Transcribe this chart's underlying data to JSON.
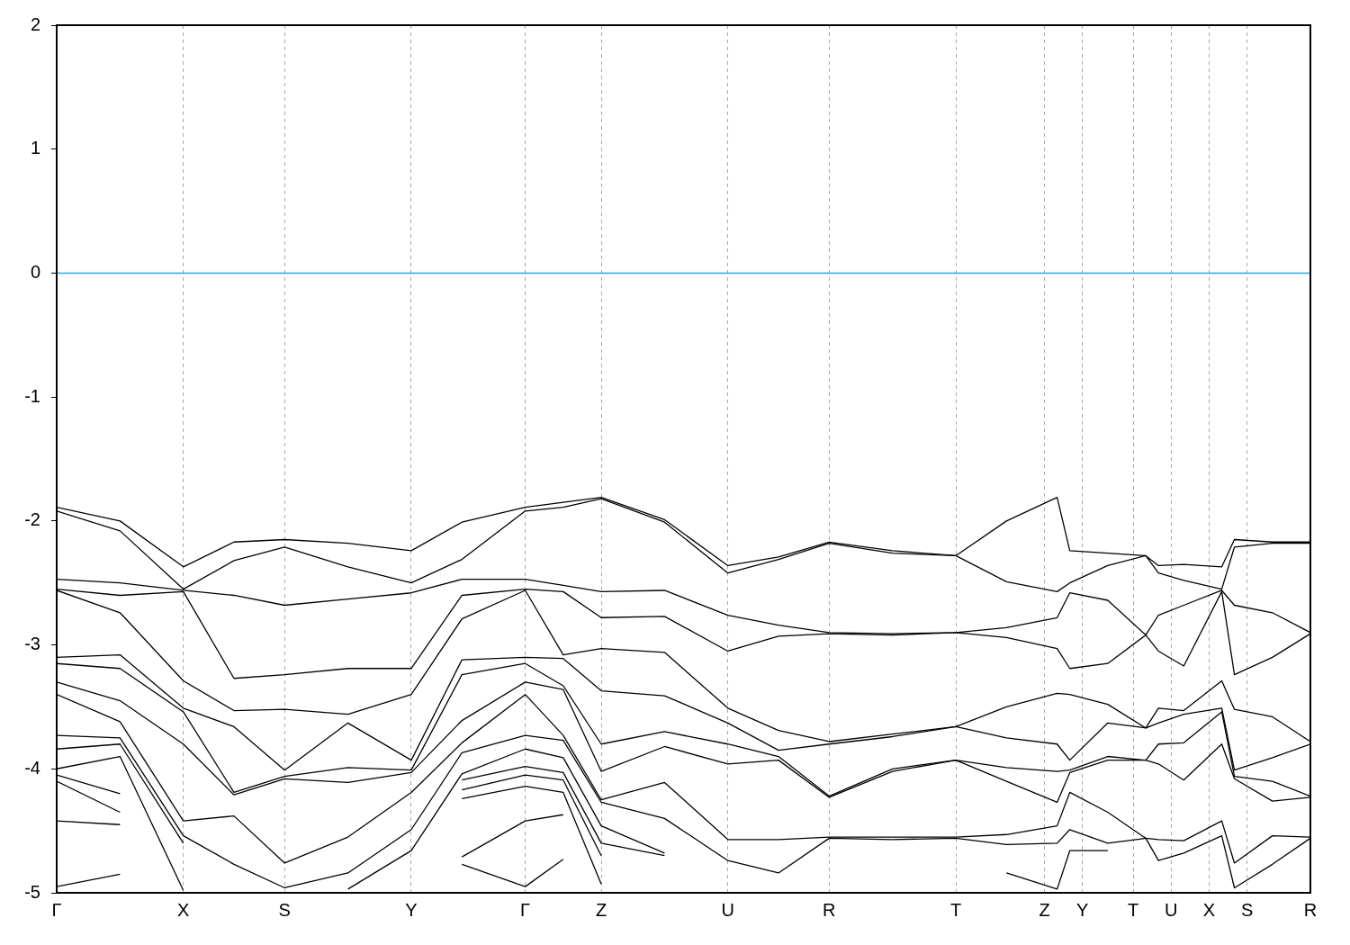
{
  "chart_data": {
    "type": "line",
    "color": "#000000",
    "marker": "none",
    "line_style": "solid",
    "legend": false,
    "grid": "x",
    "categories": [
      "Γ",
      null,
      null,
      null,
      null,
      null,
      null,
      null,
      null,
      null,
      "X",
      null,
      null,
      null,
      null,
      null,
      null,
      null,
      "S",
      null,
      null,
      null,
      null,
      null,
      null,
      null,
      null,
      null,
      "Y",
      null,
      null,
      null,
      null,
      null,
      null,
      null,
      null,
      "Γ",
      null,
      null,
      null,
      null,
      null,
      "Z",
      null,
      null,
      null,
      null,
      null,
      null,
      null,
      null,
      null,
      "U",
      null,
      null,
      null,
      null,
      null,
      null,
      null,
      "R",
      null,
      null,
      null,
      null,
      null,
      null,
      null,
      null,
      null,
      "T",
      null,
      null,
      null,
      null,
      null,
      null,
      "Z",
      null,
      null,
      "Y",
      null,
      null,
      null,
      "T",
      null,
      null,
      "U",
      null,
      null,
      "X",
      null,
      null,
      "S",
      null,
      null,
      null,
      null,
      "R"
    ],
    "series": [
      {
        "values": [
          -1.89,
          null,
          null,
          null,
          null,
          -2.0,
          null,
          null,
          null,
          null,
          -2.37,
          null,
          null,
          null,
          -2.17,
          null,
          null,
          null,
          -2.15,
          null,
          null,
          null,
          null,
          -2.18,
          null,
          null,
          null,
          null,
          -2.24,
          null,
          null,
          null,
          -2.01,
          null,
          null,
          null,
          null,
          -1.89,
          null,
          null,
          -1.85,
          null,
          null,
          -1.81,
          null,
          null,
          null,
          null,
          -1.99,
          null,
          null,
          null,
          null,
          -2.36,
          null,
          null,
          null,
          -2.29,
          null,
          null,
          null,
          -2.17,
          null,
          null,
          null,
          null,
          -2.24,
          null,
          null,
          null,
          null,
          -2.28,
          null,
          null,
          null,
          -2.0,
          null,
          null,
          null,
          -1.81,
          -2.24,
          null,
          null,
          -2.26,
          null,
          null,
          -2.28,
          -2.36,
          null,
          -2.35,
          null,
          null,
          -2.37,
          -2.15,
          null,
          null,
          -2.17,
          null,
          null,
          -2.17
        ]
      },
      {
        "values": [
          -1.92,
          null,
          null,
          null,
          null,
          -2.08,
          null,
          null,
          null,
          null,
          -2.55,
          null,
          null,
          null,
          -2.32,
          null,
          null,
          null,
          -2.21,
          null,
          null,
          null,
          null,
          -2.37,
          null,
          null,
          null,
          null,
          -2.5,
          null,
          null,
          null,
          -2.31,
          null,
          null,
          null,
          null,
          -1.92,
          null,
          null,
          -1.89,
          null,
          null,
          -1.82,
          null,
          null,
          null,
          null,
          -2.01,
          null,
          null,
          null,
          null,
          -2.42,
          null,
          null,
          null,
          -2.31,
          null,
          null,
          null,
          -2.18,
          null,
          null,
          null,
          null,
          -2.26,
          null,
          null,
          null,
          null,
          -2.28,
          null,
          null,
          null,
          -2.49,
          null,
          null,
          null,
          -2.57,
          -2.5,
          null,
          null,
          -2.36,
          null,
          null,
          -2.28,
          -2.42,
          null,
          -2.48,
          null,
          null,
          -2.55,
          -2.21,
          null,
          null,
          -2.18,
          null,
          null,
          -2.18
        ]
      },
      {
        "values": [
          -2.47,
          null,
          null,
          null,
          null,
          -2.5,
          null,
          null,
          null,
          null,
          -2.56,
          null,
          null,
          null,
          -2.6,
          null,
          null,
          null,
          -2.68,
          null,
          null,
          null,
          null,
          -2.63,
          null,
          null,
          null,
          null,
          -2.58,
          null,
          null,
          null,
          -2.47,
          null,
          null,
          null,
          null,
          -2.47,
          null,
          null,
          -2.52,
          null,
          null,
          -2.57,
          null,
          null,
          null,
          null,
          -2.56,
          null,
          null,
          null,
          null,
          -2.76,
          null,
          null,
          null,
          -2.84,
          null,
          null,
          null,
          -2.9,
          null,
          null,
          null,
          null,
          -2.91,
          null,
          null,
          null,
          null,
          -2.9,
          null,
          null,
          null,
          -2.86,
          null,
          null,
          null,
          -2.78,
          -2.58,
          null,
          null,
          -2.64,
          null,
          null,
          -2.92,
          -2.76,
          null,
          -2.68,
          null,
          null,
          -2.56,
          -2.68,
          null,
          null,
          -2.74,
          null,
          null,
          -2.9
        ]
      },
      {
        "values": [
          -2.55,
          null,
          null,
          null,
          null,
          -2.6,
          null,
          null,
          null,
          null,
          -2.57,
          null,
          null,
          null,
          -3.27,
          null,
          null,
          null,
          -3.24,
          null,
          null,
          null,
          null,
          -3.19,
          null,
          null,
          null,
          null,
          -3.19,
          null,
          null,
          null,
          -2.6,
          null,
          null,
          null,
          null,
          -2.55,
          null,
          null,
          -2.57,
          null,
          null,
          -2.78,
          null,
          null,
          null,
          null,
          -2.77,
          null,
          null,
          null,
          null,
          -3.05,
          null,
          null,
          null,
          -2.93,
          null,
          null,
          null,
          -2.91,
          null,
          null,
          null,
          null,
          -2.92,
          null,
          null,
          null,
          null,
          -2.9,
          null,
          null,
          null,
          -2.94,
          null,
          null,
          null,
          -3.03,
          -3.19,
          null,
          null,
          -3.15,
          null,
          null,
          -2.92,
          -3.05,
          null,
          -3.17,
          null,
          null,
          -2.57,
          -3.24,
          null,
          null,
          -3.1,
          null,
          null,
          -2.91
        ]
      },
      {
        "values": [
          -2.56,
          null,
          null,
          null,
          null,
          -2.74,
          null,
          null,
          null,
          null,
          -3.29,
          null,
          null,
          null,
          -3.53,
          null,
          null,
          null,
          -3.52,
          null,
          null,
          null,
          null,
          -3.56,
          null,
          null,
          null,
          null,
          -3.4,
          null,
          null,
          null,
          -2.79,
          null,
          null,
          null,
          null,
          -2.56,
          null,
          null,
          -3.08,
          null,
          null,
          -3.03,
          null,
          null,
          null,
          null,
          -3.06,
          null,
          null,
          null,
          null,
          -3.51,
          null,
          null,
          null,
          -3.69,
          null,
          null,
          null,
          -3.78,
          null,
          null,
          null,
          null,
          -3.72,
          null,
          null,
          null,
          null,
          -3.66,
          null,
          null,
          null,
          -3.5,
          null,
          null,
          null,
          -3.39,
          -3.4,
          null,
          null,
          -3.48,
          null,
          null,
          -3.67,
          -3.51,
          null,
          -3.53,
          null,
          null,
          -3.29,
          -3.52,
          null,
          null,
          -3.58,
          null,
          null,
          -3.78
        ]
      },
      {
        "values": [
          -3.1,
          null,
          null,
          null,
          null,
          -3.08,
          null,
          null,
          null,
          null,
          -3.51,
          null,
          null,
          null,
          -3.66,
          null,
          null,
          null,
          -4.01,
          null,
          null,
          null,
          null,
          -3.63,
          null,
          null,
          null,
          null,
          -3.93,
          null,
          null,
          null,
          -3.12,
          null,
          null,
          null,
          null,
          -3.1,
          null,
          null,
          -3.11,
          null,
          null,
          -3.37,
          null,
          null,
          null,
          null,
          -3.41,
          null,
          null,
          null,
          null,
          -3.63,
          null,
          null,
          null,
          -3.85,
          null,
          null,
          null,
          -3.8,
          null,
          null,
          null,
          null,
          -3.74,
          null,
          null,
          null,
          null,
          -3.66,
          null,
          null,
          null,
          -3.75,
          null,
          null,
          null,
          -3.8,
          -3.93,
          null,
          null,
          -3.63,
          null,
          null,
          -3.67,
          -3.63,
          null,
          -3.56,
          null,
          null,
          -3.51,
          -4.01,
          null,
          null,
          -3.91,
          null,
          null,
          -3.8
        ]
      },
      {
        "values": [
          -3.15,
          null,
          null,
          null,
          null,
          -3.19,
          null,
          null,
          null,
          null,
          -3.54,
          null,
          null,
          null,
          -4.19,
          null,
          null,
          null,
          -4.06,
          null,
          null,
          null,
          null,
          -3.99,
          null,
          null,
          null,
          null,
          -4.01,
          null,
          null,
          null,
          -3.24,
          null,
          null,
          null,
          null,
          -3.15,
          null,
          null,
          -3.33,
          null,
          null,
          -3.8,
          null,
          null,
          null,
          null,
          -3.7,
          null,
          null,
          null,
          null,
          -3.8,
          null,
          null,
          null,
          -3.9,
          null,
          null,
          null,
          -4.22,
          null,
          null,
          null,
          null,
          -4.0,
          null,
          null,
          null,
          null,
          -3.93,
          null,
          null,
          null,
          -3.99,
          null,
          null,
          null,
          -4.02,
          -4.01,
          null,
          null,
          -3.9,
          null,
          null,
          -3.93,
          -3.8,
          null,
          -3.79,
          null,
          null,
          -3.54,
          -4.06,
          null,
          null,
          -4.1,
          null,
          null,
          -4.22
        ]
      },
      {
        "values": [
          -3.3,
          null,
          null,
          null,
          null,
          -3.45,
          null,
          null,
          null,
          null,
          -3.8,
          null,
          null,
          null,
          -4.21,
          null,
          null,
          null,
          -4.08,
          null,
          null,
          null,
          null,
          -4.11,
          null,
          null,
          null,
          null,
          -4.03,
          null,
          null,
          null,
          -3.61,
          null,
          null,
          null,
          null,
          -3.3,
          null,
          null,
          -3.36,
          null,
          null,
          -4.02,
          null,
          null,
          null,
          null,
          -3.82,
          null,
          null,
          null,
          null,
          -3.96,
          null,
          null,
          null,
          -3.93,
          null,
          null,
          null,
          -4.23,
          null,
          null,
          null,
          null,
          -4.02,
          null,
          null,
          null,
          null,
          -3.93,
          null,
          null,
          null,
          -4.1,
          null,
          null,
          null,
          -4.27,
          -4.03,
          null,
          null,
          -3.93,
          null,
          null,
          -3.93,
          -3.96,
          null,
          -4.09,
          null,
          null,
          -3.8,
          -4.08,
          null,
          null,
          -4.26,
          null,
          null,
          -4.23
        ]
      },
      {
        "values": [
          -3.4,
          null,
          null,
          null,
          null,
          -3.62,
          null,
          null,
          null,
          null,
          -4.42,
          null,
          null,
          null,
          -4.38,
          null,
          null,
          null,
          -4.76,
          null,
          null,
          null,
          null,
          -4.55,
          null,
          null,
          null,
          null,
          -4.19,
          null,
          null,
          null,
          -3.79,
          null,
          null,
          null,
          null,
          -3.4,
          null,
          null,
          -3.73,
          null,
          null,
          -4.25,
          null,
          null,
          null,
          null,
          -4.11,
          null,
          null,
          null,
          null,
          -4.57,
          null,
          null,
          null,
          -4.57,
          null,
          null,
          null,
          -4.55,
          null,
          null,
          null,
          null,
          -4.55,
          null,
          null,
          null,
          null,
          -4.55,
          null,
          null,
          null,
          -4.53,
          null,
          null,
          null,
          -4.46,
          -4.19,
          null,
          null,
          -4.35,
          null,
          null,
          -4.56,
          -4.57,
          null,
          -4.58,
          null,
          null,
          -4.42,
          -4.76,
          null,
          null,
          -4.54,
          null,
          null,
          -4.55
        ]
      },
      {
        "values": [
          -3.73,
          null,
          null,
          null,
          null,
          -3.75,
          null,
          null,
          null,
          null,
          -4.54,
          null,
          null,
          null,
          -4.77,
          null,
          null,
          null,
          -4.96,
          null,
          null,
          null,
          null,
          -4.84,
          null,
          null,
          null,
          null,
          -4.49,
          null,
          null,
          null,
          -3.87,
          null,
          null,
          null,
          null,
          -3.73,
          null,
          null,
          -3.77,
          null,
          null,
          -4.27,
          null,
          null,
          null,
          null,
          -4.4,
          null,
          null,
          null,
          null,
          -4.74,
          null,
          null,
          null,
          -4.84,
          null,
          null,
          null,
          -4.56,
          null,
          null,
          null,
          null,
          -4.57,
          null,
          null,
          null,
          null,
          -4.56,
          null,
          null,
          null,
          -4.61,
          null,
          null,
          null,
          -4.6,
          -4.49,
          null,
          null,
          -4.6,
          null,
          null,
          -4.56,
          -4.74,
          null,
          -4.68,
          null,
          null,
          -4.54,
          -4.96,
          null,
          null,
          -4.77,
          null,
          null,
          -4.56
        ]
      },
      {
        "values": [
          -3.84,
          null,
          null,
          null,
          null,
          -3.8,
          null,
          null,
          null,
          null,
          -4.6,
          null,
          null,
          null,
          null,
          null,
          null,
          null,
          null,
          null,
          null,
          null,
          null,
          -4.97,
          null,
          null,
          null,
          null,
          -4.66,
          null,
          null,
          null,
          -4.04,
          null,
          null,
          null,
          null,
          -3.84,
          null,
          null,
          -3.91,
          null,
          null,
          -4.46,
          null,
          null,
          null,
          null,
          -4.68,
          null,
          null,
          null,
          null,
          null,
          null,
          null,
          null,
          null,
          null,
          null,
          null,
          null,
          null,
          null,
          null,
          null,
          null,
          null,
          null,
          null,
          null,
          null,
          null,
          null,
          null,
          -4.84,
          null,
          null,
          null,
          -4.97,
          -4.66,
          null,
          null,
          -4.66,
          null,
          null,
          null,
          null,
          null,
          null,
          null,
          null,
          null,
          null,
          null,
          null,
          null,
          null,
          null,
          null
        ]
      },
      {
        "values": [
          -4.0,
          null,
          null,
          null,
          null,
          -3.9,
          null,
          null,
          null,
          null,
          -4.98,
          null,
          null,
          null,
          null,
          null,
          null,
          null,
          null,
          null,
          null,
          null,
          null,
          null,
          null,
          null,
          null,
          null,
          null,
          null,
          null,
          null,
          -4.09,
          null,
          null,
          null,
          null,
          -3.98,
          null,
          null,
          -4.03,
          null,
          null,
          -4.6,
          null,
          null,
          null,
          null,
          -4.7,
          null,
          null,
          null,
          null,
          null,
          null,
          null,
          null,
          null,
          null,
          null,
          null,
          null,
          null,
          null,
          null,
          null,
          null,
          null,
          null,
          null,
          null,
          null,
          null,
          null,
          null,
          null,
          null,
          null,
          null,
          null,
          null,
          null,
          null,
          null,
          null,
          null,
          null,
          null,
          null,
          null,
          null,
          null,
          null,
          null,
          null,
          null,
          null,
          null,
          null,
          null
        ]
      },
      {
        "values": [
          -4.05,
          null,
          null,
          null,
          null,
          -4.2,
          null,
          null,
          null,
          null,
          null,
          null,
          null,
          null,
          null,
          null,
          null,
          null,
          null,
          null,
          null,
          null,
          null,
          null,
          null,
          null,
          null,
          null,
          null,
          null,
          null,
          null,
          -4.17,
          null,
          null,
          null,
          null,
          -4.05,
          null,
          null,
          -4.09,
          null,
          null,
          -4.7,
          null,
          null,
          null,
          null,
          null,
          null,
          null,
          null,
          null,
          null,
          null,
          null,
          null,
          null,
          null,
          null,
          null,
          null,
          null,
          null,
          null,
          null,
          null,
          null,
          null,
          null,
          null,
          null,
          null,
          null,
          null,
          null,
          null,
          null,
          null,
          null,
          null,
          null,
          null,
          null,
          null,
          null,
          null,
          null,
          null,
          null,
          null,
          null,
          null,
          null,
          null,
          null,
          null,
          null,
          null,
          null
        ]
      },
      {
        "values": [
          -4.1,
          null,
          null,
          null,
          null,
          -4.35,
          null,
          null,
          null,
          null,
          null,
          null,
          null,
          null,
          null,
          null,
          null,
          null,
          null,
          null,
          null,
          null,
          null,
          null,
          null,
          null,
          null,
          null,
          null,
          null,
          null,
          null,
          -4.24,
          null,
          null,
          null,
          null,
          -4.14,
          null,
          null,
          -4.19,
          null,
          null,
          -4.93,
          null,
          null,
          null,
          null,
          null,
          null,
          null,
          null,
          null,
          null,
          null,
          null,
          null,
          null,
          null,
          null,
          null,
          null,
          null,
          null,
          null,
          null,
          null,
          null,
          null,
          null,
          null,
          null,
          null,
          null,
          null,
          null,
          null,
          null,
          null,
          null,
          null,
          null,
          null,
          null,
          null,
          null,
          null,
          null,
          null,
          null,
          null,
          null,
          null,
          null,
          null,
          null,
          null,
          null,
          null,
          null
        ]
      },
      {
        "values": [
          -4.42,
          null,
          null,
          null,
          null,
          -4.45,
          null,
          null,
          null,
          null,
          null,
          null,
          null,
          null,
          null,
          null,
          null,
          null,
          null,
          null,
          null,
          null,
          null,
          null,
          null,
          null,
          null,
          null,
          null,
          null,
          null,
          null,
          -4.71,
          null,
          null,
          null,
          null,
          -4.42,
          null,
          null,
          -4.37,
          null,
          null,
          null,
          null,
          null,
          null,
          null,
          null,
          null,
          null,
          null,
          null,
          null,
          null,
          null,
          null,
          null,
          null,
          null,
          null,
          null,
          null,
          null,
          null,
          null,
          null,
          null,
          null,
          null,
          null,
          null,
          null,
          null,
          null,
          null,
          null,
          null,
          null,
          null,
          null,
          null,
          null,
          null,
          null,
          null,
          null,
          null,
          null,
          null,
          null,
          null,
          null,
          null,
          null,
          null,
          null,
          null,
          null,
          null
        ]
      },
      {
        "values": [
          -4.95,
          null,
          null,
          null,
          null,
          -4.85,
          null,
          null,
          null,
          null,
          null,
          null,
          null,
          null,
          null,
          null,
          null,
          null,
          null,
          null,
          null,
          null,
          null,
          null,
          null,
          null,
          null,
          null,
          null,
          null,
          null,
          null,
          -4.77,
          null,
          null,
          null,
          null,
          -4.95,
          null,
          null,
          -4.73,
          null,
          null,
          null,
          null,
          null,
          null,
          null,
          null,
          null,
          null,
          null,
          null,
          null,
          null,
          null,
          null,
          null,
          null,
          null,
          null,
          null,
          null,
          null,
          null,
          null,
          null,
          null,
          null,
          null,
          null,
          null,
          null,
          null,
          null,
          null,
          null,
          null,
          null,
          null,
          null,
          null,
          null,
          null,
          null,
          null,
          null,
          null,
          null,
          null,
          null,
          null,
          null,
          null,
          null,
          null,
          null,
          null,
          null,
          null
        ]
      }
    ],
    "ylim": [
      -5,
      2
    ],
    "yticks": [
      -5,
      -4,
      -3,
      -2,
      -1,
      0,
      1,
      2
    ],
    "ref_lines": [
      {
        "axis": "y",
        "value": 0,
        "color": "#35a3dc",
        "line_style": "solid"
      }
    ]
  }
}
